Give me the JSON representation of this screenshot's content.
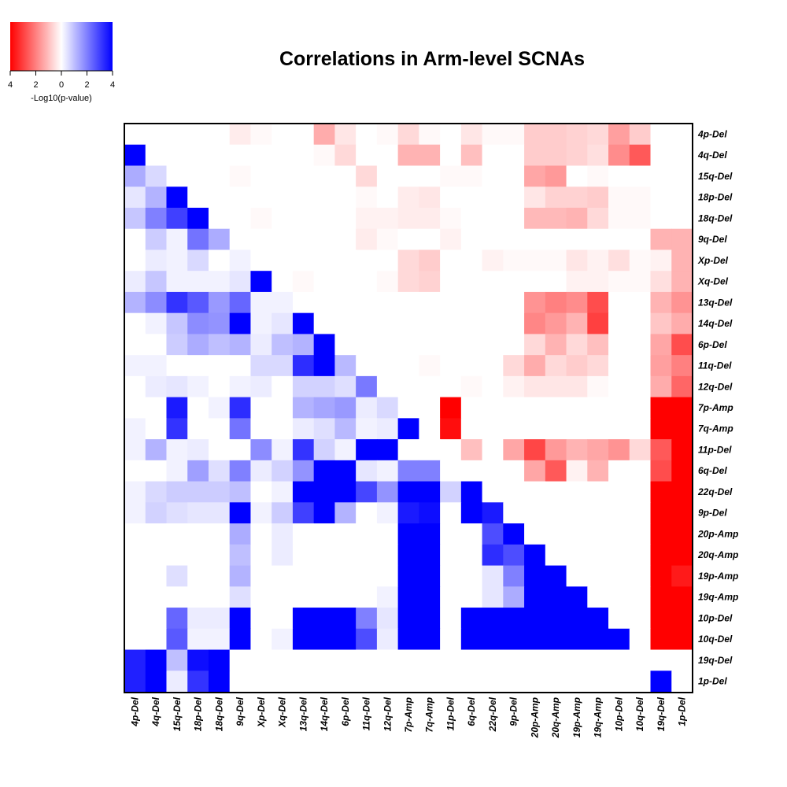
{
  "chart_data": {
    "type": "heatmap",
    "title": "Correlations in Arm-level SCNAs",
    "legend": {
      "title": "-Log10(p-value)",
      "tick_labels": [
        "4",
        "2",
        "0",
        "2",
        "4"
      ],
      "placement": "top-left",
      "low_color": "#ff0000",
      "mid_color": "#ffffff",
      "high_color": "#0000ff",
      "range": [
        -4,
        4
      ]
    },
    "x_labels": [
      "4p-Del",
      "4q-Del",
      "15q-Del",
      "18p-Del",
      "18q-Del",
      "9q-Del",
      "Xp-Del",
      "Xq-Del",
      "13q-Del",
      "14q-Del",
      "6p-Del",
      "11q-Del",
      "12q-Del",
      "7p-Amp",
      "7q-Amp",
      "11p-Del",
      "6q-Del",
      "22q-Del",
      "9p-Del",
      "20p-Amp",
      "20q-Amp",
      "19p-Amp",
      "19q-Amp",
      "10p-Del",
      "10q-Del",
      "19q-Del",
      "1p-Del"
    ],
    "y_labels": [
      "4p-Del",
      "4q-Del",
      "15q-Del",
      "18p-Del",
      "18q-Del",
      "9q-Del",
      "Xp-Del",
      "Xq-Del",
      "13q-Del",
      "14q-Del",
      "6p-Del",
      "11q-Del",
      "12q-Del",
      "7p-Amp",
      "7q-Amp",
      "11p-Del",
      "6q-Del",
      "22q-Del",
      "9p-Del",
      "20p-Amp",
      "20q-Amp",
      "19p-Amp",
      "19q-Amp",
      "10p-Del",
      "10q-Del",
      "19q-Del",
      "1p-Del"
    ],
    "value_note": "signed -log10(p): positive = blue, negative = red",
    "values": [
      [
        0,
        0,
        0,
        0,
        0,
        -0.3,
        -0.1,
        0,
        0,
        -1.3,
        -0.4,
        0,
        -0.1,
        -0.6,
        -0.1,
        0,
        -0.4,
        -0.1,
        -0.1,
        -0.8,
        -0.8,
        -0.7,
        -0.6,
        -1.5,
        -0.8,
        0,
        0
      ],
      [
        4,
        0,
        0,
        0,
        0,
        0,
        0,
        0,
        0,
        -0.1,
        -0.6,
        0,
        0,
        -1.2,
        -1.2,
        0,
        -1,
        0,
        0,
        -0.8,
        -0.8,
        -0.7,
        -0.5,
        -1.8,
        -2.6,
        0,
        0
      ],
      [
        1.3,
        0.6,
        0,
        0,
        0,
        -0.1,
        0,
        0,
        0,
        0,
        0,
        -0.6,
        0,
        0,
        0,
        -0.1,
        -0.1,
        0,
        0,
        -1.4,
        -1.6,
        0,
        -0.1,
        0,
        0,
        0,
        0
      ],
      [
        0.4,
        1.2,
        4,
        0,
        0,
        0,
        0,
        0,
        0,
        0,
        0,
        -0.1,
        0,
        -0.3,
        -0.4,
        0,
        0,
        0,
        0,
        -0.4,
        -0.7,
        -0.7,
        -0.8,
        -0.1,
        -0.1,
        0,
        0
      ],
      [
        0.9,
        2,
        3,
        4,
        0,
        0,
        -0.1,
        0,
        0,
        0,
        0,
        -0.2,
        -0.2,
        -0.3,
        -0.3,
        -0.1,
        0,
        0,
        0,
        -1.1,
        -1.1,
        -1.2,
        -0.6,
        -0.1,
        -0.1,
        0,
        0
      ],
      [
        0,
        0.8,
        0.2,
        2.2,
        1.3,
        0,
        0,
        0,
        0,
        0,
        0,
        -0.3,
        -0.1,
        0,
        0,
        -0.2,
        0,
        0,
        0,
        0,
        0,
        0,
        0,
        0,
        0,
        -1.2,
        -1.2
      ],
      [
        0,
        0.3,
        0.2,
        0.6,
        0,
        0.2,
        0,
        0,
        0,
        0,
        0,
        0,
        0,
        -0.6,
        -0.8,
        0,
        0,
        -0.2,
        -0.1,
        -0.1,
        -0.1,
        -0.4,
        -0.2,
        -0.5,
        -0.1,
        -0.2,
        -1.2
      ],
      [
        0.3,
        0.9,
        0.2,
        0.2,
        0.2,
        0.4,
        4,
        0,
        -0.1,
        0,
        0,
        0,
        -0.1,
        -0.6,
        -0.7,
        0,
        0,
        0,
        0,
        0,
        0,
        -0.2,
        -0.2,
        -0.1,
        -0.1,
        -0.5,
        -1.2
      ],
      [
        1.2,
        1.8,
        3.2,
        2.6,
        1.6,
        2.4,
        0.2,
        0.2,
        0,
        0,
        0,
        0,
        0,
        0,
        0,
        0,
        0,
        0,
        0,
        -1.7,
        -2,
        -1.8,
        -2.8,
        0,
        0,
        -1.2,
        -1.7
      ],
      [
        0,
        0.2,
        0.9,
        1.8,
        1.7,
        4,
        0.2,
        0.4,
        4,
        0,
        0,
        0,
        0,
        0,
        0,
        0,
        0,
        0,
        0,
        -1.9,
        -1.6,
        -1.2,
        -3,
        0,
        0,
        -0.9,
        -1.3
      ],
      [
        0,
        0,
        0.8,
        1.3,
        1,
        1.2,
        0.3,
        1,
        1.2,
        4,
        0,
        0,
        0,
        0,
        0,
        0,
        0,
        0,
        0,
        -0.6,
        -1.2,
        -0.6,
        -1,
        0,
        0,
        -1.4,
        -2.8
      ],
      [
        0.2,
        0.2,
        0,
        0,
        0,
        0,
        0.6,
        0.6,
        3.3,
        4,
        1.1,
        0,
        0,
        0,
        -0.1,
        0,
        0,
        0,
        -0.6,
        -1.3,
        -0.6,
        -0.8,
        -0.6,
        0,
        0,
        -1.5,
        -2
      ],
      [
        0,
        0.3,
        0.4,
        0.2,
        0,
        0.2,
        0.3,
        0,
        0.7,
        0.7,
        0.5,
        2.1,
        0,
        0,
        0,
        0,
        -0.1,
        0,
        -0.2,
        -0.4,
        -0.4,
        -0.4,
        -0.1,
        0,
        0,
        -1.3,
        -2.4
      ],
      [
        0,
        0,
        3.6,
        0,
        0.2,
        3.3,
        0,
        0,
        1.2,
        1.4,
        1.6,
        0.3,
        0.6,
        0,
        0,
        -4,
        0,
        0,
        0,
        0,
        0,
        0,
        0,
        0,
        0,
        -4,
        -4
      ],
      [
        0.2,
        0,
        3.2,
        0,
        0,
        2.2,
        0,
        0,
        0.3,
        0.5,
        1.1,
        0.2,
        0.3,
        4,
        0,
        -3.8,
        0,
        0,
        0,
        0,
        0,
        0,
        0,
        0,
        0,
        -4,
        -4
      ],
      [
        0.2,
        1.2,
        0.2,
        0.3,
        0,
        0,
        1.8,
        0.2,
        3.2,
        0.7,
        0.2,
        4,
        4,
        0,
        0,
        0,
        -1,
        0,
        -1.4,
        -2.9,
        -1.6,
        -1.2,
        -1.4,
        -1.7,
        -0.6,
        -2.6,
        -4
      ],
      [
        0,
        0,
        0.2,
        1.5,
        0.5,
        2,
        0.3,
        0.7,
        1.7,
        4,
        4,
        0.4,
        0.2,
        2,
        2,
        0,
        0,
        0,
        0,
        -1.4,
        -2.6,
        -0.2,
        -1.2,
        0,
        0,
        -2.8,
        -4
      ],
      [
        0.2,
        0.6,
        0.8,
        0.8,
        0.8,
        1,
        0,
        0.2,
        4,
        4,
        4,
        2.9,
        1.7,
        4,
        4,
        0.7,
        4,
        0,
        0,
        0,
        0,
        0,
        0,
        0,
        0,
        -4,
        -4
      ],
      [
        0.2,
        0.7,
        0.5,
        0.4,
        0.4,
        4,
        0.2,
        0.8,
        3,
        4,
        1.2,
        0,
        0.2,
        3.6,
        3.8,
        0,
        4,
        3.6,
        0,
        0,
        0,
        0,
        0,
        0,
        0,
        -4,
        -4
      ],
      [
        0,
        0,
        0,
        0,
        0,
        1.3,
        0,
        0.3,
        0,
        0,
        0,
        0,
        0,
        4,
        4,
        0,
        0,
        2.8,
        4,
        0,
        0,
        0,
        0,
        0,
        0,
        -4,
        -4
      ],
      [
        0,
        0,
        0,
        0,
        0,
        1,
        0,
        0.3,
        0,
        0,
        0,
        0,
        0,
        4,
        4,
        0,
        0,
        3.3,
        2.8,
        4,
        0,
        0,
        0,
        0,
        0,
        -4,
        -4
      ],
      [
        0,
        0,
        0.5,
        0,
        0,
        1.2,
        0,
        0,
        0,
        0,
        0,
        0,
        0,
        4,
        4,
        0,
        0,
        0.4,
        2,
        4,
        4,
        0,
        0,
        0,
        0,
        -4,
        -3.6
      ],
      [
        0,
        0,
        0,
        0,
        0,
        0.5,
        0,
        0,
        0,
        0,
        0,
        0,
        0.2,
        4,
        4,
        0,
        0,
        0.4,
        1.3,
        4,
        4,
        4,
        0,
        0,
        0,
        -4,
        -4
      ],
      [
        0,
        0,
        2.4,
        0.3,
        0.3,
        4,
        0,
        0,
        4,
        4,
        4,
        2,
        0.4,
        4,
        4,
        0,
        4,
        4,
        4,
        4,
        4,
        4,
        4,
        0,
        0,
        -4,
        -4
      ],
      [
        0,
        0,
        2.6,
        0.2,
        0.2,
        4,
        0,
        0.2,
        4,
        4,
        4,
        2.8,
        0.3,
        4,
        4,
        0,
        4,
        4,
        4,
        4,
        4,
        4,
        4,
        4,
        0,
        -4,
        -4
      ],
      [
        3.5,
        4,
        1,
        3.8,
        4,
        0,
        0,
        0,
        0,
        0,
        0,
        0,
        0,
        0,
        0,
        0,
        0,
        0,
        0,
        0,
        0,
        0,
        0,
        0,
        0,
        0,
        0
      ],
      [
        3.5,
        4,
        0.3,
        3.2,
        4,
        0,
        0,
        0,
        0,
        0,
        0,
        0,
        0,
        0,
        0,
        0,
        0,
        0,
        0,
        0,
        0,
        0,
        0,
        0,
        0,
        4,
        0
      ]
    ]
  }
}
